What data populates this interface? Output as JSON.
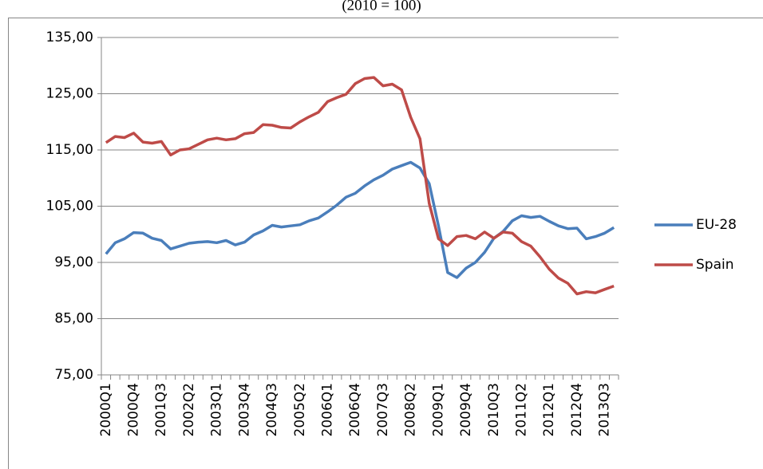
{
  "chart_data": {
    "type": "line",
    "subtitle": "(2010 = 100)",
    "categories": [
      "2000Q1",
      null,
      null,
      "2000Q4",
      null,
      null,
      "2001Q3",
      null,
      null,
      "2002Q2",
      null,
      null,
      "2003Q1",
      null,
      null,
      "2003Q4",
      null,
      null,
      "2004Q3",
      null,
      null,
      "2005Q2",
      null,
      null,
      "2006Q1",
      null,
      null,
      "2006Q4",
      null,
      null,
      "2007Q3",
      null,
      null,
      "2008Q2",
      null,
      null,
      "2009Q1",
      null,
      null,
      "2009Q4",
      null,
      null,
      "2010Q3",
      null,
      null,
      "2011Q2",
      null,
      null,
      "2012Q1",
      null,
      null,
      "2012Q4",
      null,
      null,
      "2013Q3",
      null
    ],
    "series": [
      {
        "name": "EU-28",
        "color": "#4a7ebb",
        "values": [
          96.5,
          98.5,
          99.2,
          100.3,
          100.2,
          99.3,
          98.9,
          97.4,
          97.9,
          98.4,
          98.6,
          98.7,
          98.5,
          98.9,
          98.1,
          98.6,
          99.9,
          100.6,
          101.6,
          101.3,
          101.5,
          101.7,
          102.4,
          102.9,
          104.0,
          105.2,
          106.6,
          107.3,
          108.6,
          109.7,
          110.5,
          111.6,
          112.2,
          112.8,
          111.8,
          109.0,
          101.5,
          93.2,
          92.3,
          94.0,
          95.0,
          96.8,
          99.3,
          100.5,
          102.4,
          103.3,
          103.0,
          103.2,
          102.3,
          101.5,
          101.0,
          101.1,
          99.2,
          99.6,
          100.2,
          101.2
        ]
      },
      {
        "name": "Spain",
        "color": "#be4b48",
        "values": [
          116.3,
          117.4,
          117.2,
          118.0,
          116.4,
          116.2,
          116.5,
          114.1,
          115.0,
          115.2,
          116.0,
          116.8,
          117.1,
          116.8,
          117.0,
          117.9,
          118.1,
          119.5,
          119.4,
          119.0,
          118.9,
          120.0,
          120.9,
          121.7,
          123.6,
          124.3,
          124.9,
          126.8,
          127.7,
          127.9,
          126.4,
          126.7,
          125.7,
          120.8,
          117.0,
          105.5,
          99.2,
          98.0,
          99.6,
          99.8,
          99.2,
          100.4,
          99.3,
          100.4,
          100.2,
          98.7,
          97.9,
          96.0,
          93.8,
          92.2,
          91.3,
          89.4,
          89.8,
          89.6,
          90.2,
          90.8
        ]
      }
    ],
    "ylim": [
      75,
      135
    ],
    "yticks": [
      {
        "value": 75,
        "label": "75,00"
      },
      {
        "value": 85,
        "label": "85,00"
      },
      {
        "value": 95,
        "label": "95,00"
      },
      {
        "value": 105,
        "label": "105,00"
      },
      {
        "value": 115,
        "label": "115,00"
      },
      {
        "value": 125,
        "label": "125,00"
      },
      {
        "value": 135,
        "label": "135,00"
      }
    ],
    "grid": true,
    "legend": "right"
  }
}
